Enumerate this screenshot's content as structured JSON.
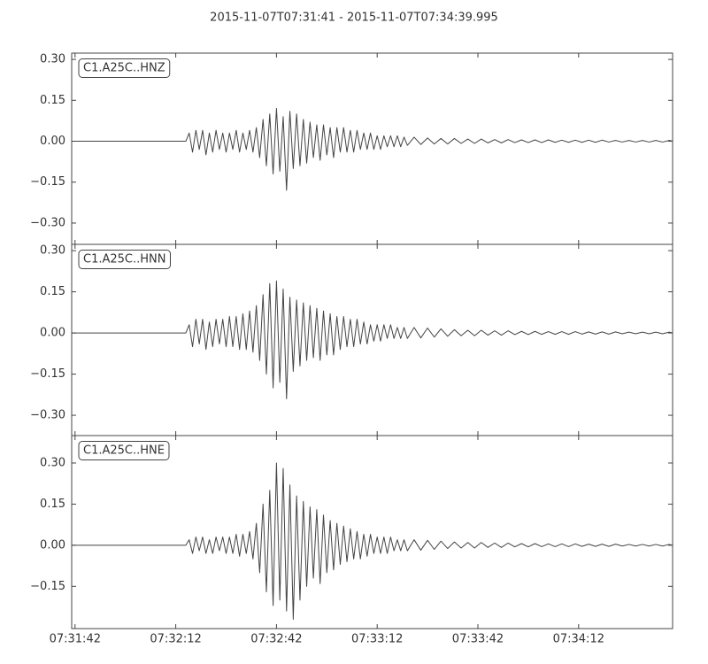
{
  "chart_data": [
    {
      "type": "line",
      "title": "2015-11-07T07:31:41  -  2015-11-07T07:34:39.995",
      "x": [
        0,
        34,
        35,
        36,
        37,
        38,
        39,
        40,
        41,
        42,
        43,
        44,
        45,
        46,
        47,
        48,
        49,
        50,
        51,
        52,
        53,
        54,
        55,
        56,
        57,
        58,
        59,
        60,
        61,
        62,
        63,
        64,
        65,
        66,
        67,
        68,
        69,
        70,
        71,
        72,
        73,
        74,
        75,
        76,
        77,
        78,
        79,
        80,
        81,
        82,
        83,
        84,
        85,
        86,
        87,
        88,
        89,
        90,
        91,
        92,
        93,
        94,
        95,
        96,
        97,
        98,
        99,
        100,
        102,
        104,
        106,
        108,
        110,
        112,
        114,
        116,
        118,
        120,
        122,
        124,
        126,
        128,
        130,
        132,
        134,
        136,
        138,
        140,
        142,
        144,
        146,
        148,
        150,
        152,
        154,
        156,
        158,
        160,
        162,
        164,
        166,
        168,
        170,
        172,
        174,
        176,
        178,
        179
      ],
      "series": [
        {
          "name": "C1.A25C..HNZ",
          "color": "#444444",
          "values": [
            0,
            0,
            0.03,
            -0.04,
            0.04,
            -0.03,
            0.04,
            -0.05,
            0.03,
            -0.04,
            0.04,
            -0.03,
            0.03,
            -0.04,
            0.03,
            -0.03,
            0.04,
            -0.04,
            0.03,
            -0.03,
            0.04,
            -0.04,
            0.05,
            -0.06,
            0.08,
            -0.09,
            0.1,
            -0.12,
            0.12,
            -0.11,
            0.09,
            -0.18,
            0.11,
            -0.1,
            0.1,
            -0.09,
            0.08,
            -0.08,
            0.07,
            -0.06,
            0.06,
            -0.07,
            0.06,
            -0.05,
            0.05,
            -0.06,
            0.05,
            -0.04,
            0.05,
            -0.04,
            0.04,
            -0.04,
            0.04,
            -0.03,
            0.03,
            -0.03,
            0.03,
            -0.03,
            0.02,
            -0.03,
            0.02,
            -0.02,
            0.02,
            -0.02,
            0.02,
            -0.02,
            0.015,
            -0.015,
            0.015,
            -0.012,
            0.012,
            -0.01,
            0.01,
            -0.01,
            0.01,
            -0.008,
            0.008,
            -0.008,
            0.008,
            -0.006,
            0.006,
            -0.006,
            0.006,
            -0.005,
            0.005,
            -0.005,
            0.005,
            -0.005,
            0.005,
            -0.004,
            0.004,
            -0.004,
            0.004,
            -0.004,
            0.004,
            -0.004,
            0.004,
            -0.003,
            0.003,
            -0.003,
            0.003,
            -0.003,
            0.003,
            -0.003,
            0.003,
            -0.003,
            0.003,
            0
          ]
        }
      ],
      "xlim": [
        0,
        178.995
      ],
      "ylim": [
        -0.378,
        0.323
      ],
      "yticks": [
        {
          "value": 0.3,
          "label": "0.30"
        },
        {
          "value": 0.15,
          "label": "0.15"
        },
        {
          "value": 0,
          "label": "0.00"
        },
        {
          "value": -0.15,
          "label": "−0.15"
        },
        {
          "value": -0.3,
          "label": "−0.30"
        }
      ]
    },
    {
      "type": "line",
      "x": [
        0,
        34,
        35,
        36,
        37,
        38,
        39,
        40,
        41,
        42,
        43,
        44,
        45,
        46,
        47,
        48,
        49,
        50,
        51,
        52,
        53,
        54,
        55,
        56,
        57,
        58,
        59,
        60,
        61,
        62,
        63,
        64,
        65,
        66,
        67,
        68,
        69,
        70,
        71,
        72,
        73,
        74,
        75,
        76,
        77,
        78,
        79,
        80,
        81,
        82,
        83,
        84,
        85,
        86,
        87,
        88,
        89,
        90,
        91,
        92,
        93,
        94,
        95,
        96,
        97,
        98,
        99,
        100,
        102,
        104,
        106,
        108,
        110,
        112,
        114,
        116,
        118,
        120,
        122,
        124,
        126,
        128,
        130,
        132,
        134,
        136,
        138,
        140,
        142,
        144,
        146,
        148,
        150,
        152,
        154,
        156,
        158,
        160,
        162,
        164,
        166,
        168,
        170,
        172,
        174,
        176,
        178,
        179
      ],
      "series": [
        {
          "name": "C1.A25C..HNN",
          "color": "#444444",
          "values": [
            0,
            0,
            0.03,
            -0.05,
            0.05,
            -0.04,
            0.05,
            -0.06,
            0.04,
            -0.05,
            0.05,
            -0.04,
            0.05,
            -0.05,
            0.06,
            -0.05,
            0.06,
            -0.06,
            0.07,
            -0.06,
            0.08,
            -0.07,
            0.1,
            -0.1,
            0.14,
            -0.15,
            0.18,
            -0.2,
            0.19,
            -0.18,
            0.16,
            -0.24,
            0.13,
            -0.14,
            0.12,
            -0.12,
            0.11,
            -0.1,
            0.1,
            -0.09,
            0.09,
            -0.1,
            0.08,
            -0.08,
            0.07,
            -0.08,
            0.06,
            -0.06,
            0.06,
            -0.05,
            0.05,
            -0.05,
            0.05,
            -0.04,
            0.04,
            -0.04,
            0.03,
            -0.03,
            0.03,
            -0.03,
            0.03,
            -0.02,
            0.03,
            -0.02,
            0.02,
            -0.02,
            0.02,
            -0.02,
            0.02,
            -0.018,
            0.018,
            -0.015,
            0.015,
            -0.012,
            0.012,
            -0.01,
            0.01,
            -0.01,
            0.01,
            -0.008,
            0.008,
            -0.008,
            0.008,
            -0.006,
            0.006,
            -0.006,
            0.006,
            -0.005,
            0.005,
            -0.005,
            0.005,
            -0.005,
            0.005,
            -0.004,
            0.004,
            -0.004,
            0.004,
            -0.004,
            0.004,
            -0.003,
            0.003,
            -0.003,
            0.003,
            -0.003,
            0.003,
            -0.003,
            0.003,
            0
          ]
        }
      ],
      "xlim": [
        0,
        178.995
      ],
      "ylim": [
        -0.374,
        0.323
      ],
      "yticks": [
        {
          "value": 0.3,
          "label": "0.30"
        },
        {
          "value": 0.15,
          "label": "0.15"
        },
        {
          "value": 0,
          "label": "0.00"
        },
        {
          "value": -0.15,
          "label": "−0.15"
        },
        {
          "value": -0.3,
          "label": "−0.30"
        }
      ]
    },
    {
      "type": "line",
      "x": [
        0,
        34,
        35,
        36,
        37,
        38,
        39,
        40,
        41,
        42,
        43,
        44,
        45,
        46,
        47,
        48,
        49,
        50,
        51,
        52,
        53,
        54,
        55,
        56,
        57,
        58,
        59,
        60,
        61,
        62,
        63,
        64,
        65,
        66,
        67,
        68,
        69,
        70,
        71,
        72,
        73,
        74,
        75,
        76,
        77,
        78,
        79,
        80,
        81,
        82,
        83,
        84,
        85,
        86,
        87,
        88,
        89,
        90,
        91,
        92,
        93,
        94,
        95,
        96,
        97,
        98,
        99,
        100,
        102,
        104,
        106,
        108,
        110,
        112,
        114,
        116,
        118,
        120,
        122,
        124,
        126,
        128,
        130,
        132,
        134,
        136,
        138,
        140,
        142,
        144,
        146,
        148,
        150,
        152,
        154,
        156,
        158,
        160,
        162,
        164,
        166,
        168,
        170,
        172,
        174,
        176,
        178,
        179
      ],
      "series": [
        {
          "name": "C1.A25C..HNE",
          "color": "#444444",
          "values": [
            0,
            0,
            0.02,
            -0.03,
            0.03,
            -0.02,
            0.03,
            -0.03,
            0.02,
            -0.03,
            0.03,
            -0.02,
            0.03,
            -0.03,
            0.03,
            -0.03,
            0.04,
            -0.04,
            0.04,
            -0.03,
            0.05,
            -0.05,
            0.08,
            -0.1,
            0.15,
            -0.17,
            0.2,
            -0.22,
            0.3,
            -0.2,
            0.28,
            -0.24,
            0.22,
            -0.27,
            0.18,
            -0.2,
            0.16,
            -0.15,
            0.14,
            -0.12,
            0.13,
            -0.14,
            0.11,
            -0.1,
            0.09,
            -0.09,
            0.08,
            -0.07,
            0.07,
            -0.06,
            0.06,
            -0.05,
            0.05,
            -0.05,
            0.04,
            -0.04,
            0.04,
            -0.03,
            0.03,
            -0.03,
            0.03,
            -0.03,
            0.03,
            -0.02,
            0.02,
            -0.02,
            0.02,
            -0.02,
            0.02,
            -0.018,
            0.018,
            -0.015,
            0.015,
            -0.012,
            0.012,
            -0.01,
            0.01,
            -0.01,
            0.01,
            -0.008,
            0.008,
            -0.008,
            0.008,
            -0.006,
            0.006,
            -0.006,
            0.006,
            -0.005,
            0.005,
            -0.005,
            0.005,
            -0.005,
            0.005,
            -0.004,
            0.004,
            -0.004,
            0.004,
            -0.004,
            0.004,
            -0.003,
            0.003,
            -0.003,
            0.003,
            -0.003,
            0.003,
            -0.003,
            0.003,
            0
          ]
        }
      ],
      "xlim": [
        0,
        178.995
      ],
      "ylim": [
        -0.304,
        0.4
      ],
      "yticks": [
        {
          "value": 0.3,
          "label": "0.30"
        },
        {
          "value": 0.15,
          "label": "0.15"
        },
        {
          "value": 0,
          "label": "0.00"
        },
        {
          "value": -0.15,
          "label": "−0.15"
        }
      ],
      "xticks": [
        {
          "value": 1,
          "label": "07:31:42"
        },
        {
          "value": 31,
          "label": "07:32:12"
        },
        {
          "value": 61,
          "label": "07:32:42"
        },
        {
          "value": 91,
          "label": "07:33:12"
        },
        {
          "value": 121,
          "label": "07:33:42"
        },
        {
          "value": 151,
          "label": "07:34:12"
        }
      ]
    }
  ]
}
